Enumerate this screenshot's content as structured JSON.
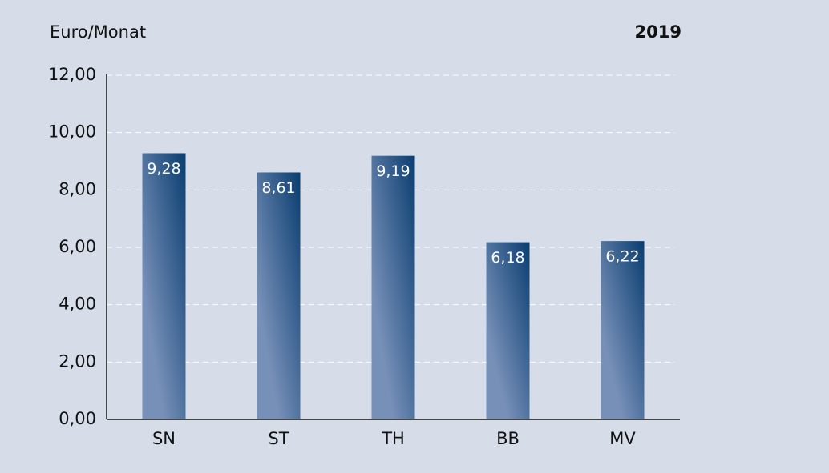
{
  "chart_data": {
    "type": "bar",
    "y_axis_label": "Euro/Monat",
    "annotation": "2019",
    "categories": [
      "SN",
      "ST",
      "TH",
      "BB",
      "MV"
    ],
    "values": [
      9.28,
      8.61,
      9.19,
      6.18,
      6.22
    ],
    "value_labels": [
      "9,28",
      "8,61",
      "9,19",
      "6,18",
      "6,22"
    ],
    "color": "#0a3d70",
    "gradient_color": "#7790b8",
    "ylim": [
      0,
      12
    ],
    "yticks": [
      {
        "value": 0,
        "label": "0,00"
      },
      {
        "value": 2,
        "label": "2,00"
      },
      {
        "value": 4,
        "label": "4,00"
      },
      {
        "value": 6,
        "label": "6,00"
      },
      {
        "value": 8,
        "label": "8,00"
      },
      {
        "value": 10,
        "label": "10,00"
      },
      {
        "value": 12,
        "label": "12,00"
      }
    ],
    "grid": true
  }
}
